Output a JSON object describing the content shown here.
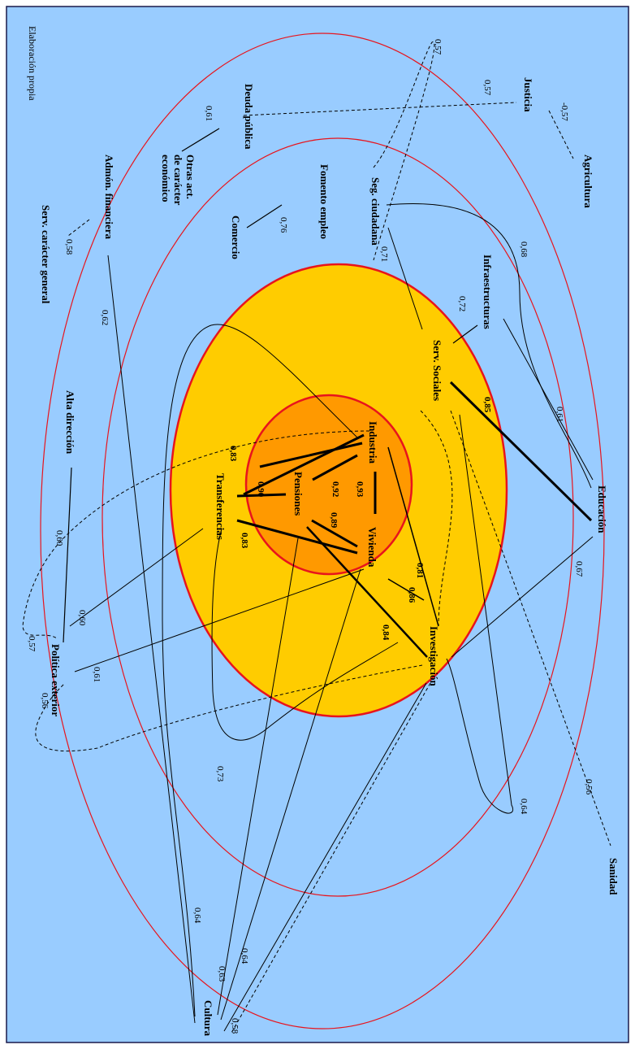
{
  "source_note": "Elaboración propia",
  "colors": {
    "background": "#99ccff",
    "ring_line": "#e8141c",
    "zone_yellow": "#ffcc00",
    "zone_orange": "#ff9900"
  },
  "nodes": {
    "agricultura": "Agricultura",
    "justicia": "Justicia",
    "deuda_publica": "Deuda pública",
    "otras_act_1": "Otras act.",
    "otras_act_2": "de carácter",
    "otras_act_3": "económico",
    "admon_financiera": "Admón. financiera",
    "serv_caracter_general": "Serv. carácter general",
    "fomento_empleo": "Fomento empleo",
    "comercio": "Comercio",
    "seg_ciudadana": "Seg. ciudadana",
    "infraestructuras": "Infraestructuras",
    "serv_sociales": "Serv. Sociales",
    "educacion": "Educación",
    "sanidad": "Sanidad",
    "industria": "Industria",
    "pensiones": "Pensiones",
    "vivienda": "Vivienda",
    "transferencias": "Transferencias",
    "investigacion": "Investigación",
    "alta_direccion": "Alta dirección",
    "politica_exterior": "Política exterior",
    "cultura": "Cultura"
  },
  "values": {
    "v057_top": "0,57",
    "v057_justicia": "0,57",
    "v057_agri": "-0,57",
    "v061_deuda": "0,61",
    "v058_serv": "0,58",
    "v076": "0,76",
    "v071": "0,71",
    "v068": "0,68",
    "v072": "0,72",
    "v062": "0,62",
    "v061_infra": "0,61",
    "v085": "0,85",
    "v067": "0,67",
    "v093": "0,93",
    "v092": "0,92",
    "v090": "0,90",
    "v089": "0,89",
    "v083_left": "0,83",
    "v083_trans": "0,83",
    "v081": "0,81",
    "v086": "0,86",
    "v084": "0,84",
    "v060_alta": "0,60",
    "v060_pol": "0,60",
    "v057_pol": "0,57",
    "v061_pol": "0,61",
    "v056_pol": "0,56",
    "v056_sanidad": "0,56",
    "v064_right": "0,64",
    "v073": "0,73",
    "v064_c1": "0,64",
    "v064_c2": "0,64",
    "v063": "0,63",
    "v058_cultura": "0,58"
  }
}
